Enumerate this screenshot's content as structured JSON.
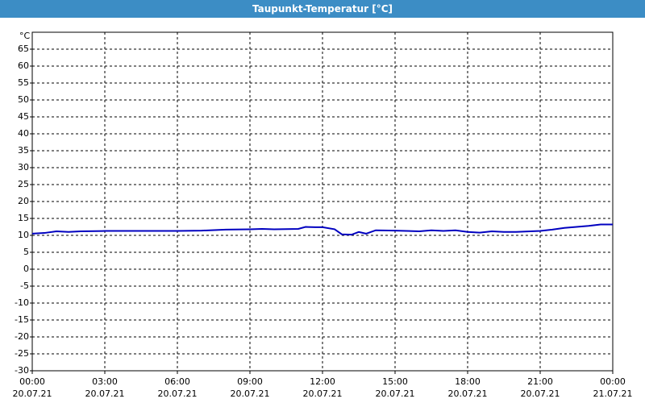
{
  "chart_data": {
    "type": "line",
    "title": "Taupunkt-Temperatur [°C]",
    "y_unit": "°C",
    "x": [
      0,
      0.5,
      1,
      1.5,
      2,
      3,
      4,
      5,
      6,
      7,
      8,
      9,
      9.5,
      10,
      11,
      11.3,
      11.7,
      12,
      12.5,
      12.8,
      13.2,
      13.5,
      13.8,
      14.2,
      15,
      16,
      16.5,
      17,
      17.5,
      18,
      18.5,
      19,
      19.5,
      20,
      21,
      21.5,
      22,
      23,
      23.5,
      24
    ],
    "series": [
      {
        "name": "Taupunkt",
        "color": "#0000c0",
        "values": [
          10.5,
          10.7,
          11.2,
          11.0,
          11.2,
          11.3,
          11.3,
          11.3,
          11.3,
          11.4,
          11.7,
          11.8,
          11.9,
          11.8,
          11.9,
          12.5,
          12.4,
          12.4,
          11.8,
          10.3,
          10.2,
          11.0,
          10.5,
          11.5,
          11.4,
          11.2,
          11.5,
          11.3,
          11.5,
          11.0,
          10.8,
          11.2,
          11.0,
          11.0,
          11.3,
          11.7,
          12.2,
          12.8,
          13.2,
          13.2
        ]
      }
    ],
    "xlim": [
      0,
      24
    ],
    "xticks": [
      {
        "value": 0,
        "label": "00:00\n20.07.21"
      },
      {
        "value": 3,
        "label": "03:00\n20.07.21"
      },
      {
        "value": 6,
        "label": "06:00\n20.07.21"
      },
      {
        "value": 9,
        "label": "09:00\n20.07.21"
      },
      {
        "value": 12,
        "label": "12:00\n20.07.21"
      },
      {
        "value": 15,
        "label": "15:00\n20.07.21"
      },
      {
        "value": 18,
        "label": "18:00\n20.07.21"
      },
      {
        "value": 21,
        "label": "21:00\n20.07.21"
      },
      {
        "value": 24,
        "label": "00:00\n21.07.21"
      }
    ],
    "ylim": [
      -30,
      70
    ],
    "yticks": [
      -30,
      -25,
      -20,
      -15,
      -10,
      -5,
      0,
      5,
      10,
      15,
      20,
      25,
      30,
      35,
      40,
      45,
      50,
      55,
      60,
      65
    ],
    "grid": true
  }
}
